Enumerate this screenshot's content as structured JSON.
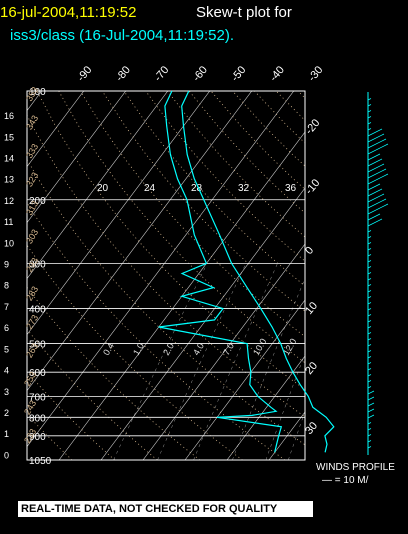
{
  "chart_data": {
    "type": "skew-t",
    "title_line1_date": "16-jul-2004,11:19:52",
    "title_line1_text": "Skew-t plot for",
    "title_line2": "iss3/class (16-Jul-2004,11:19:52).",
    "pressure_labels": [
      "100",
      "200",
      "300",
      "400",
      "500",
      "600",
      "700",
      "800",
      "900",
      "1050"
    ],
    "height_labels": [
      "0",
      "1",
      "2",
      "3",
      "4",
      "5",
      "6",
      "7",
      "8",
      "9",
      "10",
      "11",
      "12",
      "13",
      "14",
      "15",
      "16"
    ],
    "top_temp_labels": [
      "-90",
      "-80",
      "-70",
      "-60",
      "-50",
      "-40",
      "-30"
    ],
    "right_temp_labels": [
      "-20",
      "-10",
      "0",
      "10",
      "20",
      "30"
    ],
    "mixing_ratio_labels": [
      "20",
      "24",
      "28",
      "32",
      "36"
    ],
    "lower_mixing_labels": [
      "0.4",
      "1.0",
      "2.0",
      "4.0",
      "7.0",
      "10.0",
      "12.0"
    ],
    "theta_labels": [
      "233",
      "243",
      "253",
      "263",
      "273",
      "283",
      "293",
      "303",
      "313",
      "323",
      "333",
      "343",
      "353"
    ],
    "temperature_profile": [
      {
        "p": 1000,
        "t": 22
      },
      {
        "p": 950,
        "t": 21
      },
      {
        "p": 900,
        "t": 19
      },
      {
        "p": 850,
        "t": 19.5
      },
      {
        "p": 800,
        "t": 16
      },
      {
        "p": 750,
        "t": 11
      },
      {
        "p": 700,
        "t": 8
      },
      {
        "p": 650,
        "t": 4
      },
      {
        "p": 600,
        "t": 0
      },
      {
        "p": 550,
        "t": -4
      },
      {
        "p": 500,
        "t": -8
      },
      {
        "p": 450,
        "t": -13
      },
      {
        "p": 400,
        "t": -19
      },
      {
        "p": 350,
        "t": -26
      },
      {
        "p": 300,
        "t": -34
      },
      {
        "p": 250,
        "t": -42
      },
      {
        "p": 200,
        "t": -52
      },
      {
        "p": 175,
        "t": -58
      },
      {
        "p": 150,
        "t": -64
      },
      {
        "p": 125,
        "t": -70
      },
      {
        "p": 110,
        "t": -74
      },
      {
        "p": 100,
        "t": -75
      }
    ],
    "dewpoint_profile": [
      {
        "p": 1000,
        "t": 10
      },
      {
        "p": 950,
        "t": 9
      },
      {
        "p": 900,
        "t": 8
      },
      {
        "p": 850,
        "t": 7
      },
      {
        "p": 800,
        "t": -10
      },
      {
        "p": 790,
        "t": -2
      },
      {
        "p": 770,
        "t": 3
      },
      {
        "p": 750,
        "t": 1
      },
      {
        "p": 700,
        "t": -4
      },
      {
        "p": 650,
        "t": -8
      },
      {
        "p": 600,
        "t": -10
      },
      {
        "p": 550,
        "t": -13
      },
      {
        "p": 500,
        "t": -16
      },
      {
        "p": 450,
        "t": -40
      },
      {
        "p": 430,
        "t": -28
      },
      {
        "p": 400,
        "t": -28
      },
      {
        "p": 370,
        "t": -40
      },
      {
        "p": 350,
        "t": -34
      },
      {
        "p": 320,
        "t": -44
      },
      {
        "p": 300,
        "t": -40
      },
      {
        "p": 250,
        "t": -48
      },
      {
        "p": 200,
        "t": -56
      },
      {
        "p": 175,
        "t": -62
      },
      {
        "p": 150,
        "t": -68
      },
      {
        "p": 125,
        "t": -74
      },
      {
        "p": 110,
        "t": -78
      },
      {
        "p": 100,
        "t": -79
      }
    ],
    "wind_label": "WINDS PROFILE",
    "wind_scale": "— = 10 M/"
  },
  "disclaimer": "REAL-TIME DATA, NOT CHECKED FOR QUALITY",
  "colors": {
    "title_date": "#ffff00",
    "title_text": "#ffffff",
    "subtitle": "#00ffff",
    "profile": "#00ffff",
    "isotherm": "#ffffff",
    "adiabat": "#d2b48c",
    "grid": "#ffffff"
  }
}
